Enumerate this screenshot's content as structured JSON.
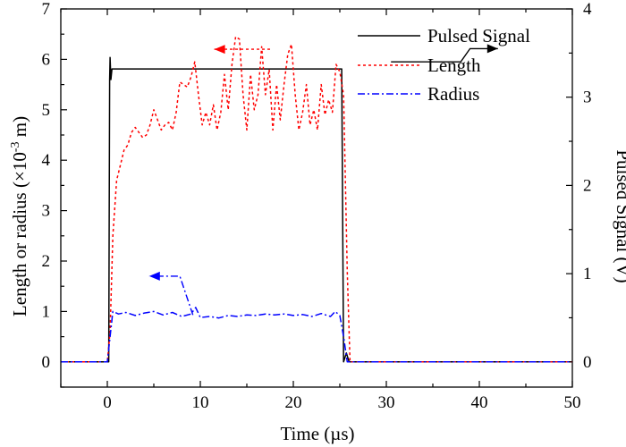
{
  "chart_data": {
    "type": "line",
    "title": "",
    "xlabel": "Time (µs)",
    "ylabel_left": "Length or radius (×10",
    "ylabel_left_exp": "-3",
    "ylabel_left_unit": " m)",
    "ylabel_right": "Pulsed Signal (V)",
    "xlim": [
      -5,
      50
    ],
    "ylim_left": [
      -0.5,
      7
    ],
    "ylim_right": [
      -0.2857,
      4
    ],
    "x_ticks": [
      0,
      10,
      20,
      30,
      40,
      50
    ],
    "y_left_ticks": [
      0,
      1,
      2,
      3,
      4,
      5,
      6,
      7
    ],
    "y_right_ticks": [
      0,
      1,
      2,
      3,
      4
    ],
    "legend_position": "top-right",
    "series": [
      {
        "name": "Pulsed Signal",
        "axis": "right",
        "color": "#000000",
        "dash": "solid",
        "points": [
          [
            -5,
            0
          ],
          [
            0.15,
            0
          ],
          [
            0.25,
            3.2
          ],
          [
            0.3,
            3.45
          ],
          [
            0.38,
            3.2
          ],
          [
            0.5,
            3.32
          ],
          [
            1,
            3.32
          ],
          [
            25.2,
            3.32
          ],
          [
            25.4,
            0
          ],
          [
            25.7,
            0.1
          ],
          [
            26,
            0
          ],
          [
            50,
            0
          ]
        ]
      },
      {
        "name": "Length",
        "axis": "left",
        "color": "#ff0000",
        "dash": "dotted",
        "points": [
          [
            -5,
            0
          ],
          [
            0,
            0
          ],
          [
            0.3,
            0.6
          ],
          [
            0.6,
            2.5
          ],
          [
            1,
            3.6
          ],
          [
            1.4,
            3.9
          ],
          [
            1.8,
            4.2
          ],
          [
            2.2,
            4.3
          ],
          [
            2.6,
            4.55
          ],
          [
            3,
            4.65
          ],
          [
            3.4,
            4.55
          ],
          [
            3.8,
            4.45
          ],
          [
            4.2,
            4.5
          ],
          [
            4.6,
            4.7
          ],
          [
            5,
            5.0
          ],
          [
            5.4,
            4.8
          ],
          [
            5.8,
            4.6
          ],
          [
            6.2,
            4.7
          ],
          [
            6.6,
            4.75
          ],
          [
            7,
            4.6
          ],
          [
            7.4,
            4.95
          ],
          [
            7.8,
            5.55
          ],
          [
            8.2,
            5.5
          ],
          [
            8.6,
            5.45
          ],
          [
            9,
            5.65
          ],
          [
            9.4,
            5.95
          ],
          [
            9.8,
            5.3
          ],
          [
            10.2,
            4.7
          ],
          [
            10.6,
            4.95
          ],
          [
            11,
            4.7
          ],
          [
            11.4,
            5.1
          ],
          [
            11.8,
            4.6
          ],
          [
            12.2,
            4.95
          ],
          [
            12.6,
            5.7
          ],
          [
            13,
            5.0
          ],
          [
            13.4,
            5.9
          ],
          [
            13.8,
            6.45
          ],
          [
            14.2,
            6.4
          ],
          [
            14.6,
            5.3
          ],
          [
            15,
            4.6
          ],
          [
            15.4,
            5.7
          ],
          [
            15.8,
            5.0
          ],
          [
            16.2,
            5.3
          ],
          [
            16.6,
            6.25
          ],
          [
            17,
            5.3
          ],
          [
            17.4,
            5.8
          ],
          [
            17.8,
            4.6
          ],
          [
            18.2,
            5.5
          ],
          [
            18.6,
            4.8
          ],
          [
            19,
            5.5
          ],
          [
            19.4,
            6.1
          ],
          [
            19.8,
            6.3
          ],
          [
            20.2,
            5.3
          ],
          [
            20.6,
            4.6
          ],
          [
            21,
            4.95
          ],
          [
            21.4,
            5.5
          ],
          [
            21.8,
            4.7
          ],
          [
            22.2,
            5.0
          ],
          [
            22.6,
            4.6
          ],
          [
            23,
            5.5
          ],
          [
            23.4,
            4.9
          ],
          [
            23.8,
            5.2
          ],
          [
            24.2,
            4.95
          ],
          [
            24.6,
            5.9
          ],
          [
            25,
            5.75
          ],
          [
            25.4,
            5.3
          ],
          [
            25.8,
            1.8
          ],
          [
            26.1,
            0
          ],
          [
            50,
            0
          ]
        ]
      },
      {
        "name": "Radius",
        "axis": "left",
        "color": "#0000ff",
        "dash": "dashdot",
        "points": [
          [
            -5,
            0
          ],
          [
            0,
            0
          ],
          [
            0.3,
            0.5
          ],
          [
            0.6,
            1.0
          ],
          [
            1.2,
            0.95
          ],
          [
            2,
            0.98
          ],
          [
            3,
            0.92
          ],
          [
            4,
            0.97
          ],
          [
            5,
            1.0
          ],
          [
            6,
            0.93
          ],
          [
            7,
            0.98
          ],
          [
            8,
            0.9
          ],
          [
            9,
            0.95
          ],
          [
            9.5,
            1.08
          ],
          [
            10,
            0.88
          ],
          [
            11,
            0.9
          ],
          [
            12,
            0.87
          ],
          [
            13,
            0.92
          ],
          [
            14,
            0.9
          ],
          [
            15,
            0.93
          ],
          [
            16,
            0.92
          ],
          [
            17,
            0.95
          ],
          [
            18,
            0.93
          ],
          [
            19,
            0.95
          ],
          [
            20,
            0.92
          ],
          [
            21,
            0.94
          ],
          [
            22,
            0.9
          ],
          [
            23,
            0.96
          ],
          [
            24,
            0.9
          ],
          [
            24.5,
            1.0
          ],
          [
            25,
            0.92
          ],
          [
            25.4,
            0.5
          ],
          [
            25.8,
            0
          ],
          [
            50,
            0
          ]
        ]
      }
    ],
    "annotations": [
      {
        "target": "right-axis",
        "series": "Pulsed Signal",
        "path": [
          [
            30.5,
            3.4
          ],
          [
            38,
            3.4
          ],
          [
            39,
            3.55
          ],
          [
            42,
            3.55
          ]
        ]
      },
      {
        "target": "left-axis",
        "series": "Length",
        "path": [
          [
            17.5,
            6.2
          ],
          [
            11.5,
            6.2
          ]
        ]
      },
      {
        "target": "left-axis",
        "series": "Radius",
        "path": [
          [
            9.2,
            0.93
          ],
          [
            7.8,
            1.7
          ],
          [
            4.5,
            1.7
          ]
        ]
      }
    ]
  }
}
